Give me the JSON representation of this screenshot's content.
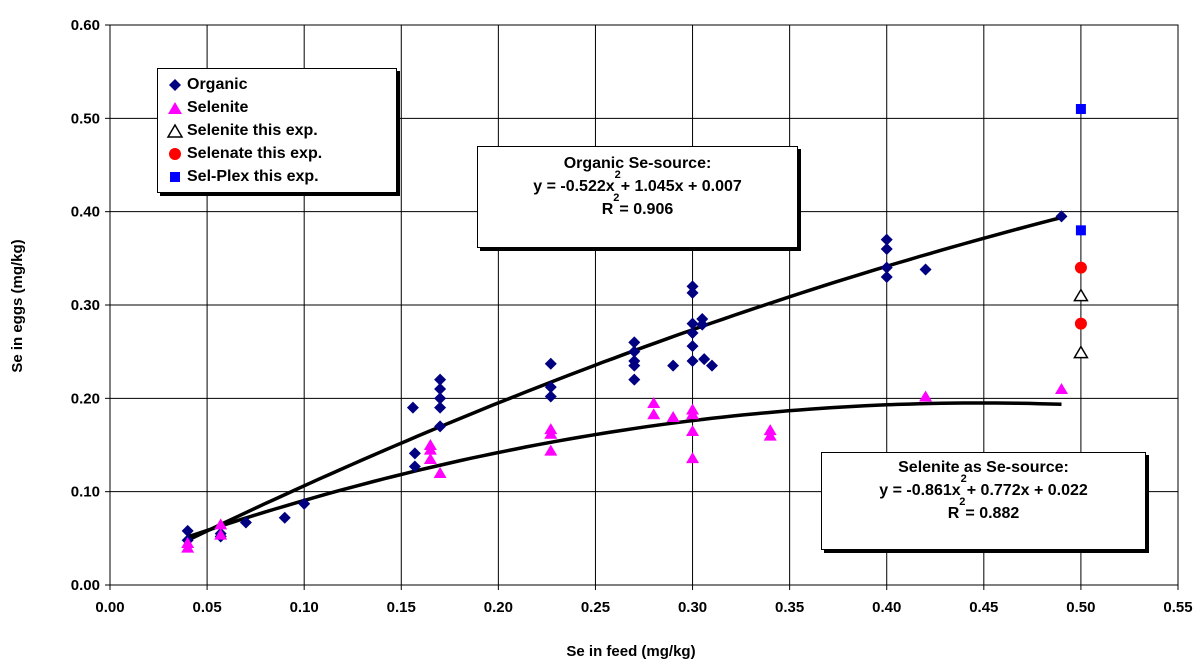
{
  "chart_data": {
    "type": "scatter",
    "xlabel": "Se in feed (mg/kg)",
    "ylabel": "Se in eggs (mg/kg)",
    "xlim": [
      0,
      0.55
    ],
    "ylim": [
      0,
      0.6
    ],
    "x_ticks": [
      "0.00",
      "0.05",
      "0.10",
      "0.15",
      "0.20",
      "0.25",
      "0.30",
      "0.35",
      "0.40",
      "0.45",
      "0.50",
      "0.55"
    ],
    "y_ticks": [
      "0.00",
      "0.10",
      "0.20",
      "0.30",
      "0.40",
      "0.50",
      "0.60"
    ],
    "grid": true,
    "legend_position": "top-left",
    "series": [
      {
        "name": "Organic",
        "marker": "diamond",
        "color": "#000080",
        "points": [
          [
            0.04,
            0.058
          ],
          [
            0.04,
            0.048
          ],
          [
            0.057,
            0.055
          ],
          [
            0.057,
            0.052
          ],
          [
            0.07,
            0.067
          ],
          [
            0.09,
            0.072
          ],
          [
            0.1,
            0.087
          ],
          [
            0.156,
            0.19
          ],
          [
            0.157,
            0.141
          ],
          [
            0.157,
            0.127
          ],
          [
            0.17,
            0.22
          ],
          [
            0.17,
            0.21
          ],
          [
            0.17,
            0.2
          ],
          [
            0.17,
            0.19
          ],
          [
            0.17,
            0.17
          ],
          [
            0.227,
            0.237
          ],
          [
            0.227,
            0.212
          ],
          [
            0.227,
            0.202
          ],
          [
            0.27,
            0.26
          ],
          [
            0.27,
            0.25
          ],
          [
            0.27,
            0.24
          ],
          [
            0.27,
            0.235
          ],
          [
            0.27,
            0.22
          ],
          [
            0.29,
            0.235
          ],
          [
            0.3,
            0.32
          ],
          [
            0.3,
            0.313
          ],
          [
            0.3,
            0.28
          ],
          [
            0.3,
            0.27
          ],
          [
            0.3,
            0.256
          ],
          [
            0.3,
            0.24
          ],
          [
            0.305,
            0.285
          ],
          [
            0.305,
            0.279
          ],
          [
            0.306,
            0.242
          ],
          [
            0.31,
            0.235
          ],
          [
            0.4,
            0.37
          ],
          [
            0.4,
            0.36
          ],
          [
            0.4,
            0.34
          ],
          [
            0.4,
            0.33
          ],
          [
            0.42,
            0.338
          ],
          [
            0.49,
            0.395
          ]
        ]
      },
      {
        "name": "Selenite",
        "marker": "triangle",
        "color": "#ff00ff",
        "points": [
          [
            0.04,
            0.045
          ],
          [
            0.04,
            0.04
          ],
          [
            0.057,
            0.065
          ],
          [
            0.057,
            0.054
          ],
          [
            0.165,
            0.15
          ],
          [
            0.165,
            0.145
          ],
          [
            0.165,
            0.135
          ],
          [
            0.17,
            0.12
          ],
          [
            0.227,
            0.167
          ],
          [
            0.227,
            0.162
          ],
          [
            0.227,
            0.144
          ],
          [
            0.28,
            0.195
          ],
          [
            0.28,
            0.183
          ],
          [
            0.29,
            0.18
          ],
          [
            0.3,
            0.188
          ],
          [
            0.3,
            0.183
          ],
          [
            0.3,
            0.165
          ],
          [
            0.3,
            0.136
          ],
          [
            0.34,
            0.166
          ],
          [
            0.34,
            0.16
          ],
          [
            0.42,
            0.202
          ],
          [
            0.49,
            0.21
          ]
        ]
      },
      {
        "name": "Selenite this exp.",
        "marker": "open-triangle",
        "color": "#000000",
        "points": [
          [
            0.5,
            0.31
          ],
          [
            0.5,
            0.249
          ]
        ]
      },
      {
        "name": "Selenate this exp.",
        "marker": "circle",
        "color": "#ff0000",
        "points": [
          [
            0.5,
            0.34
          ],
          [
            0.5,
            0.28
          ]
        ]
      },
      {
        "name": "Sel-Plex this exp.",
        "marker": "square",
        "color": "#0000ff",
        "points": [
          [
            0.5,
            0.51
          ],
          [
            0.5,
            0.38
          ]
        ]
      }
    ],
    "trendlines": [
      {
        "series": "Organic",
        "a": -0.522,
        "b": 1.045,
        "c": 0.007,
        "x_range": [
          0.04,
          0.49
        ]
      },
      {
        "series": "Selenite",
        "a": -0.861,
        "b": 0.772,
        "c": 0.022,
        "x_range": [
          0.04,
          0.49
        ]
      }
    ],
    "annotations": {
      "organic": {
        "title": "Organic Se-source:",
        "equation": "y = -0.522x",
        "equation_rest": " + 1.045x + 0.007",
        "r2_label": "R",
        "r2_rest": " = 0.906",
        "sup": "2"
      },
      "selenite": {
        "title": "Selenite as Se-source:",
        "equation": "y = -0.861x",
        "equation_rest": " + 0.772x + 0.022",
        "r2_label": "R",
        "r2_rest": " = 0.882",
        "sup": "2"
      }
    }
  }
}
